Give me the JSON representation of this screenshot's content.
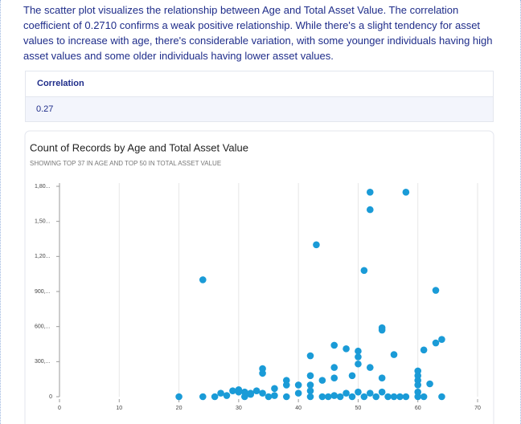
{
  "text": "The scatter plot visualizes the relationship between Age and Total Asset Value. The correlation coefficient of 0.2710 confirms a weak positive relationship. While there's a slight tendency for asset values to increase with age, there's considerable variation, with some younger individuals having high asset values and some older individuals having lower asset values.",
  "table": {
    "header": [
      "Correlation"
    ],
    "rows": [
      [
        "0.27"
      ]
    ]
  },
  "chart_data": {
    "type": "scatter",
    "title": "Count of Records by Age and Total Asset Value",
    "subtitle": "SHOWING TOP 37 IN AGE AND TOP 50 IN TOTAL ASSET VALUE",
    "color": "#1a9bd7",
    "grid": "x",
    "xlim": [
      0,
      70
    ],
    "xticks": [
      0,
      10,
      20,
      30,
      40,
      50,
      60,
      70
    ],
    "ylim": [
      0,
      1800
    ],
    "yticks": [
      0,
      {
        "value": 300,
        "label": "300,..."
      },
      {
        "value": 600,
        "label": "600,..."
      },
      {
        "value": 900,
        "label": "900,..."
      },
      {
        "value": 1200,
        "label": "1,20..."
      },
      {
        "value": 1500,
        "label": "1,50..."
      },
      {
        "value": 1800,
        "label": "1,80..."
      }
    ],
    "x": [
      24,
      43,
      52,
      58,
      52,
      51,
      63,
      54,
      54,
      64,
      63,
      61,
      56,
      42,
      46,
      48,
      50,
      50,
      52,
      50,
      46,
      34,
      34,
      42,
      38,
      38,
      44,
      46,
      49,
      54,
      60,
      60,
      60,
      60,
      62,
      40,
      42,
      42,
      36,
      30,
      31,
      33,
      32,
      20,
      24,
      26,
      27,
      28,
      29,
      30,
      31,
      32,
      34,
      35,
      36,
      38,
      40,
      42,
      44,
      45,
      46,
      47,
      48,
      49,
      50,
      51,
      52,
      53,
      54,
      55,
      56,
      57,
      58,
      60,
      60,
      61,
      64
    ],
    "values": [
      1000,
      1300,
      1750,
      1750,
      1600,
      1080,
      910,
      590,
      570,
      490,
      460,
      400,
      360,
      350,
      440,
      410,
      390,
      340,
      250,
      280,
      250,
      240,
      200,
      180,
      140,
      100,
      140,
      160,
      180,
      160,
      220,
      180,
      140,
      100,
      110,
      100,
      100,
      50,
      70,
      60,
      40,
      50,
      20,
      0,
      0,
      0,
      30,
      10,
      50,
      40,
      0,
      30,
      30,
      0,
      10,
      0,
      30,
      0,
      0,
      0,
      10,
      0,
      30,
      0,
      40,
      0,
      30,
      0,
      40,
      0,
      0,
      0,
      0,
      0,
      40,
      0,
      0
    ]
  }
}
